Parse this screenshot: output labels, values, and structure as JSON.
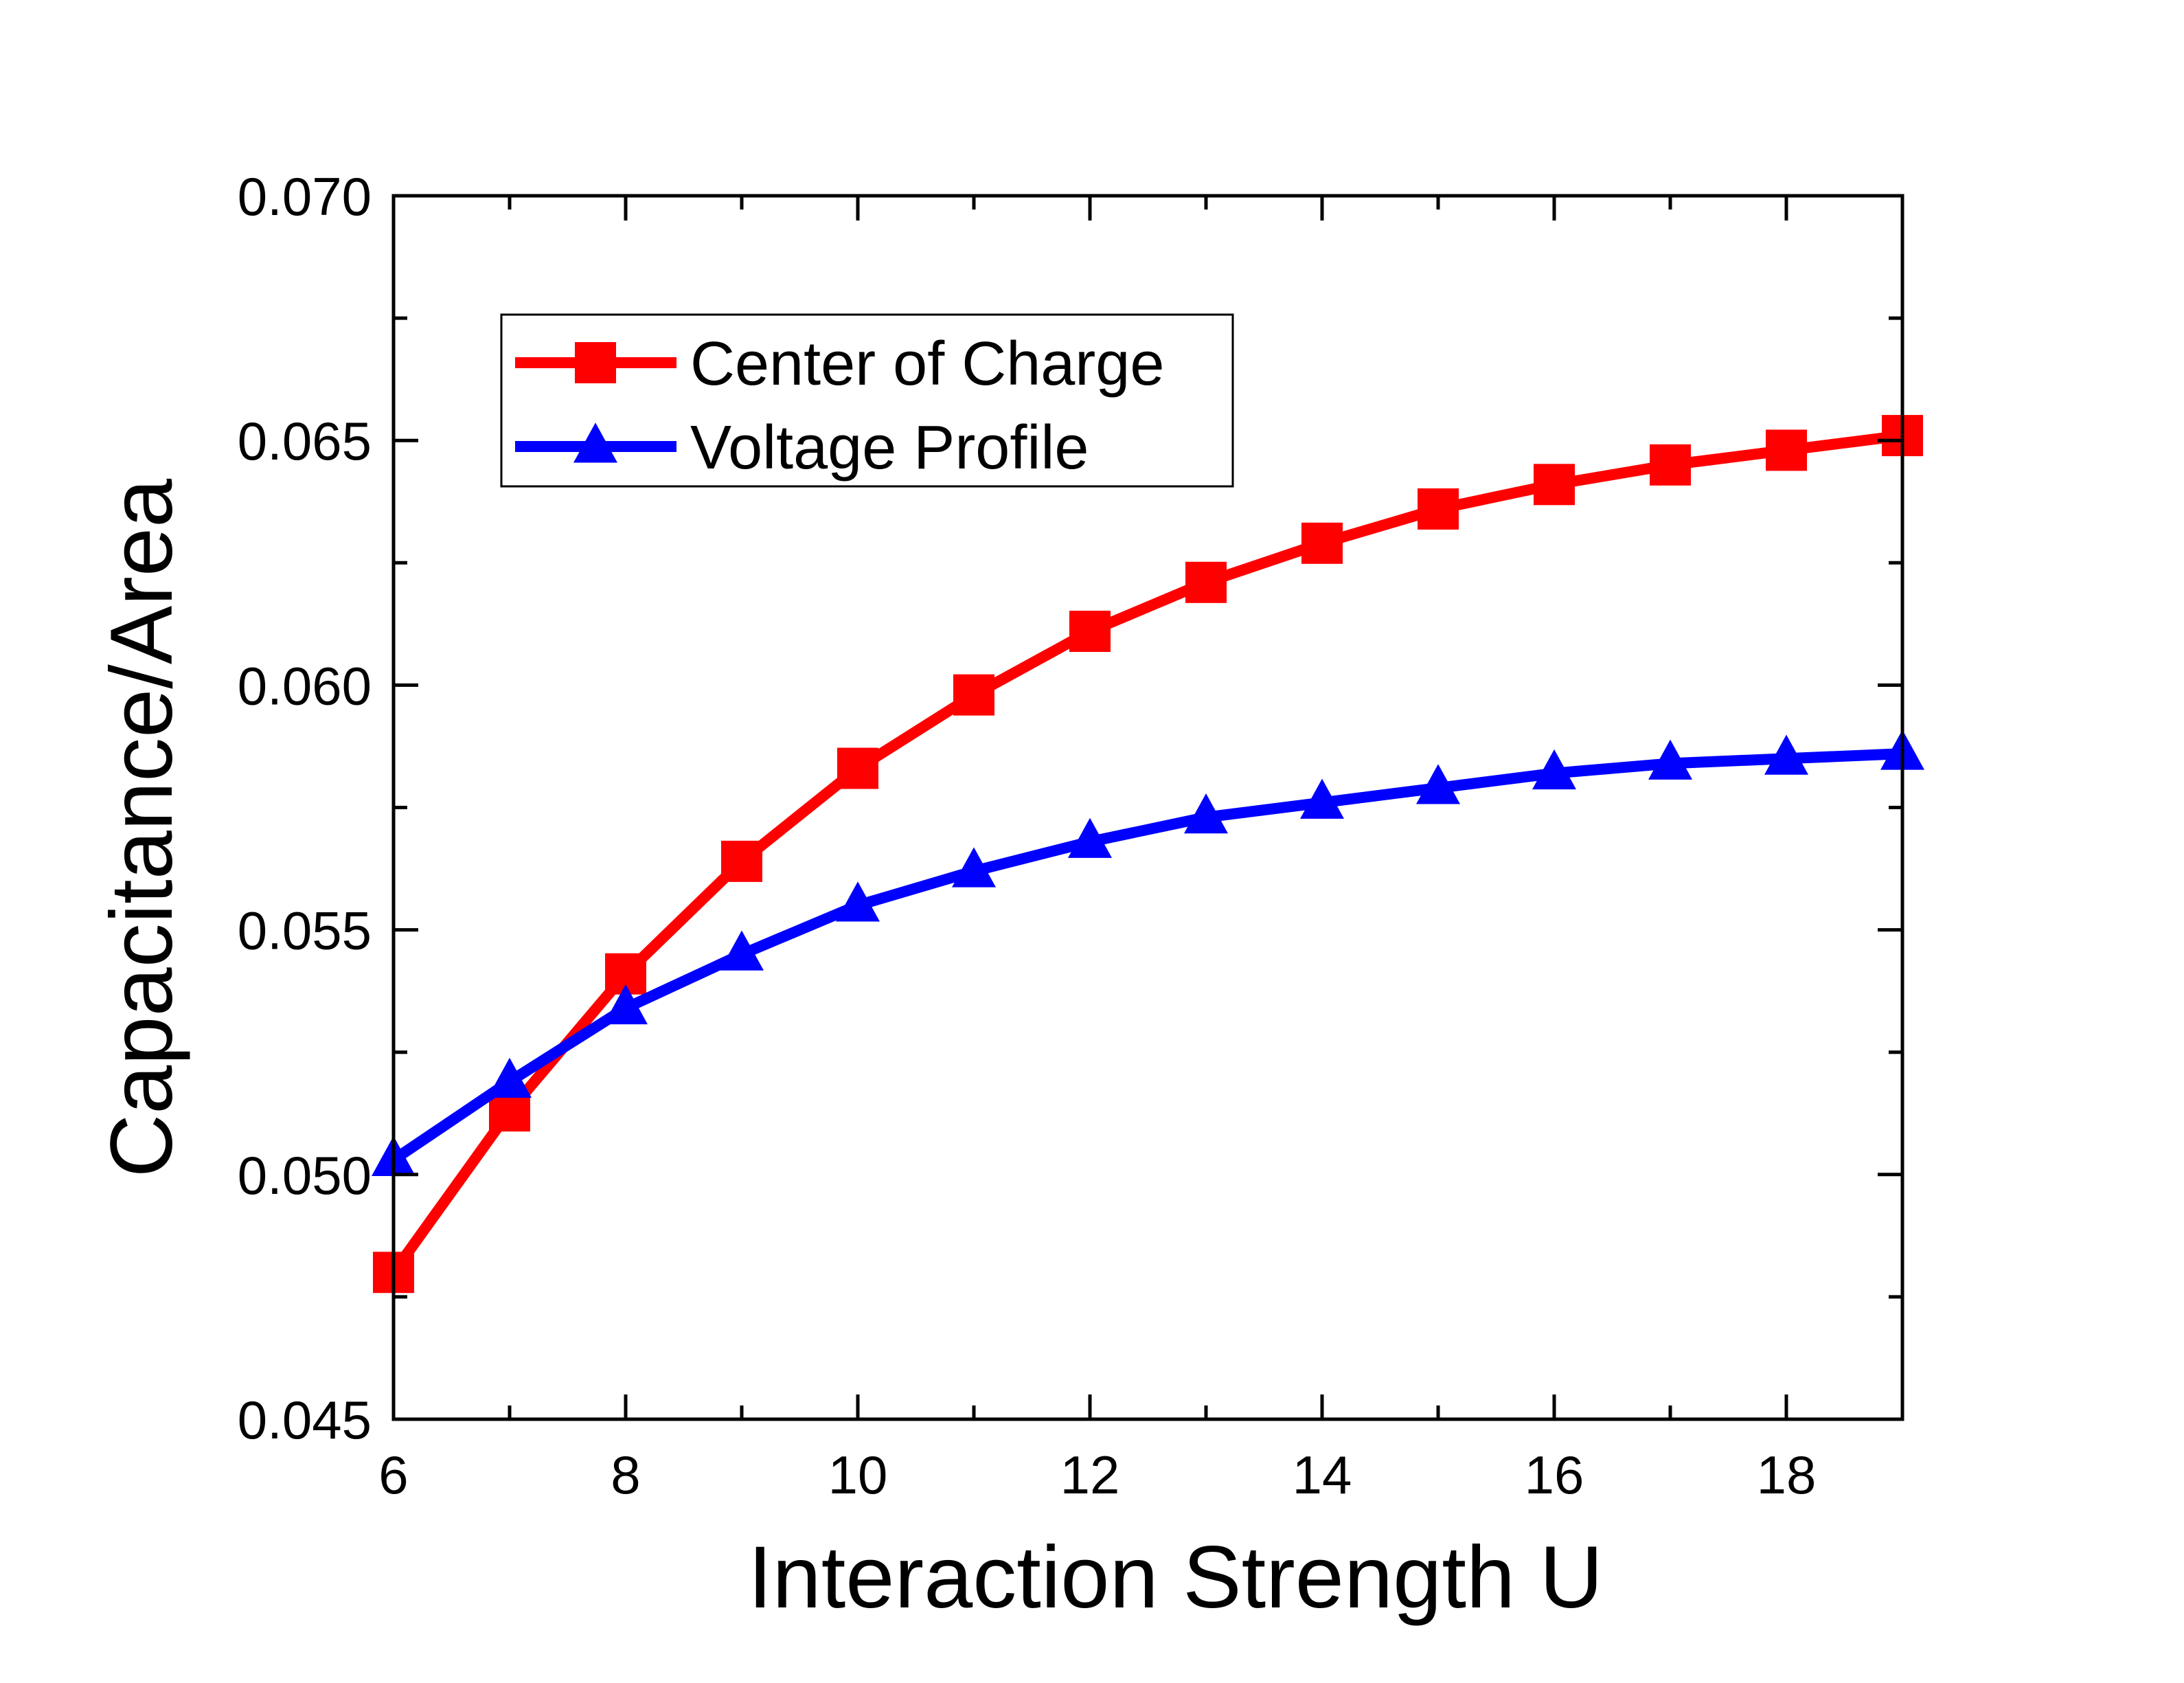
{
  "chart_data": {
    "type": "line",
    "title": "",
    "xlabel": "Interaction Strength U",
    "ylabel": "Capacitance/Area",
    "xlim": [
      6,
      19
    ],
    "ylim": [
      0.045,
      0.07
    ],
    "x_ticks": [
      6,
      8,
      10,
      12,
      14,
      16,
      18
    ],
    "x_tick_labels": [
      "6",
      "8",
      "10",
      "12",
      "14",
      "16",
      "18"
    ],
    "y_ticks": [
      0.045,
      0.05,
      0.055,
      0.06,
      0.065,
      0.07
    ],
    "y_tick_labels": [
      "0.045",
      "0.050",
      "0.055",
      "0.060",
      "0.065",
      "0.070"
    ],
    "grid": false,
    "legend_position": "top-left",
    "x": [
      6,
      7,
      8,
      9,
      10,
      11,
      12,
      13,
      14,
      15,
      16,
      17,
      18,
      19
    ],
    "series": [
      {
        "name": "Center of Charge",
        "color": "#ff0000",
        "marker": "square",
        "values": [
          0.048,
          0.0513,
          0.0541,
          0.0564,
          0.0583,
          0.0598,
          0.0611,
          0.0621,
          0.0629,
          0.0636,
          0.0641,
          0.0645,
          0.0648,
          0.0651
        ]
      },
      {
        "name": "Voltage Profile",
        "color": "#0000ff",
        "marker": "triangle",
        "values": [
          0.0503,
          0.0519,
          0.0534,
          0.0545,
          0.0555,
          0.0562,
          0.0568,
          0.0573,
          0.0576,
          0.0579,
          0.0582,
          0.0584,
          0.0585,
          0.0586
        ]
      }
    ]
  }
}
